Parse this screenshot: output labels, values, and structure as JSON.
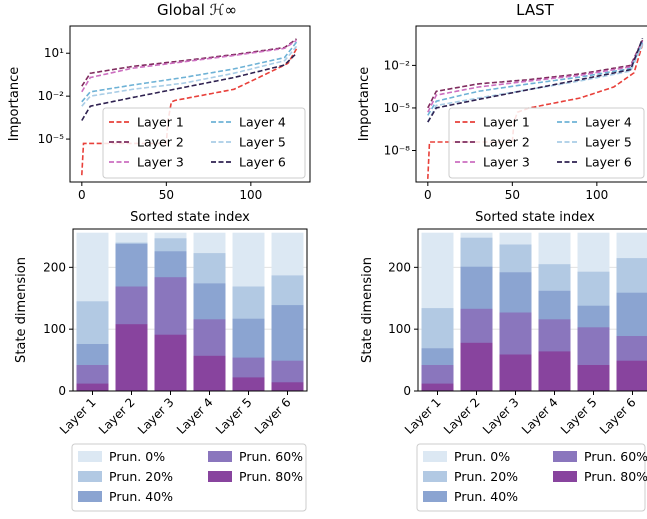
{
  "chart_data": [
    {
      "type": "line",
      "title": "Global ℋ∞",
      "xlabel": "Sorted state index",
      "ylabel": "Importance",
      "yscale": "log",
      "xticks": [
        "0",
        "50",
        "100"
      ],
      "yticks": [
        "10⁻⁵",
        "10⁻²",
        "10¹"
      ],
      "xlim": [
        -7,
        135
      ],
      "ylim": [
        1e-08,
        800
      ],
      "legend_position": "lower-right",
      "x_length": 128,
      "series": [
        {
          "name": "Layer 1",
          "color": "#e8403a",
          "dash": "dashed",
          "keypoints": [
            [
              0,
              3e-08
            ],
            [
              1,
              5e-06
            ],
            [
              50,
              5e-06
            ],
            [
              51,
              0.0002
            ],
            [
              53,
              0.004
            ],
            [
              55,
              0.005
            ],
            [
              90,
              0.03
            ],
            [
              110,
              0.4
            ],
            [
              122,
              2
            ],
            [
              127,
              20
            ]
          ]
        },
        {
          "name": "Layer 2",
          "color": "#7f2b5e",
          "dash": "dashed",
          "keypoints": [
            [
              0,
              0.05
            ],
            [
              5,
              0.4
            ],
            [
              30,
              1.2
            ],
            [
              60,
              3
            ],
            [
              90,
              8
            ],
            [
              120,
              25
            ],
            [
              127,
              100
            ]
          ]
        },
        {
          "name": "Layer 3",
          "color": "#cc6ec0",
          "dash": "dashed",
          "keypoints": [
            [
              0,
              0.02
            ],
            [
              5,
              0.2
            ],
            [
              30,
              0.9
            ],
            [
              60,
              2.5
            ],
            [
              90,
              7
            ],
            [
              120,
              22
            ],
            [
              127,
              80
            ]
          ]
        },
        {
          "name": "Layer 4",
          "color": "#6eb2d6",
          "dash": "dashed",
          "keypoints": [
            [
              0,
              0.004
            ],
            [
              5,
              0.02
            ],
            [
              30,
              0.06
            ],
            [
              60,
              0.2
            ],
            [
              90,
              0.8
            ],
            [
              120,
              5
            ],
            [
              127,
              60
            ]
          ]
        },
        {
          "name": "Layer 5",
          "color": "#a9cde6",
          "dash": "dashed",
          "keypoints": [
            [
              0,
              0.002
            ],
            [
              5,
              0.01
            ],
            [
              30,
              0.03
            ],
            [
              60,
              0.08
            ],
            [
              90,
              0.4
            ],
            [
              120,
              3
            ],
            [
              127,
              30
            ]
          ]
        },
        {
          "name": "Layer 6",
          "color": "#2e2150",
          "dash": "dashed",
          "keypoints": [
            [
              0,
              0.0002
            ],
            [
              5,
              0.002
            ],
            [
              30,
              0.008
            ],
            [
              60,
              0.04
            ],
            [
              90,
              0.2
            ],
            [
              120,
              1.5
            ],
            [
              127,
              10
            ]
          ]
        }
      ]
    },
    {
      "type": "line",
      "title": "LAST",
      "xlabel": "Sorted state index",
      "ylabel": "Importance",
      "yscale": "log",
      "xticks": [
        "0",
        "50",
        "100"
      ],
      "yticks": [
        "10⁻⁸",
        "10⁻⁵",
        "10⁻²"
      ],
      "xlim": [
        -7,
        135
      ],
      "ylim": [
        6e-11,
        6
      ],
      "legend_position": "lower-right",
      "x_length": 128,
      "series": [
        {
          "name": "Layer 1",
          "color": "#e8403a",
          "dash": "dashed",
          "keypoints": [
            [
              0,
              1e-10
            ],
            [
              1,
              4e-08
            ],
            [
              50,
              4e-08
            ],
            [
              51,
              1e-06
            ],
            [
              53,
              5e-06
            ],
            [
              60,
              1e-05
            ],
            [
              90,
              5e-05
            ],
            [
              110,
              0.0003
            ],
            [
              122,
              0.003
            ],
            [
              127,
              0.3
            ]
          ]
        },
        {
          "name": "Layer 2",
          "color": "#7f2b5e",
          "dash": "dashed",
          "keypoints": [
            [
              0,
              1e-05
            ],
            [
              5,
              0.00015
            ],
            [
              30,
              0.0005
            ],
            [
              60,
              0.001
            ],
            [
              90,
              0.0025
            ],
            [
              120,
              0.01
            ],
            [
              127,
              0.6
            ]
          ]
        },
        {
          "name": "Layer 3",
          "color": "#cc6ec0",
          "dash": "dashed",
          "keypoints": [
            [
              0,
              5e-06
            ],
            [
              5,
              8e-05
            ],
            [
              30,
              0.0003
            ],
            [
              60,
              0.0008
            ],
            [
              90,
              0.002
            ],
            [
              120,
              0.008
            ],
            [
              127,
              0.5
            ]
          ]
        },
        {
          "name": "Layer 4",
          "color": "#6eb2d6",
          "dash": "dashed",
          "keypoints": [
            [
              0,
              3e-06
            ],
            [
              5,
              3e-05
            ],
            [
              30,
              0.00015
            ],
            [
              60,
              0.0005
            ],
            [
              90,
              0.0015
            ],
            [
              120,
              0.006
            ],
            [
              127,
              0.4
            ]
          ]
        },
        {
          "name": "Layer 5",
          "color": "#a9cde6",
          "dash": "dashed",
          "keypoints": [
            [
              0,
              1e-06
            ],
            [
              5,
              1.5e-05
            ],
            [
              30,
              5e-05
            ],
            [
              60,
              0.0002
            ],
            [
              90,
              0.0008
            ],
            [
              120,
              0.004
            ],
            [
              127,
              0.3
            ]
          ]
        },
        {
          "name": "Layer 6",
          "color": "#2e2150",
          "dash": "dashed",
          "keypoints": [
            [
              0,
              1e-06
            ],
            [
              5,
              1e-05
            ],
            [
              30,
              4e-05
            ],
            [
              60,
              0.0002
            ],
            [
              90,
              0.001
            ],
            [
              120,
              0.005
            ],
            [
              127,
              0.8
            ]
          ]
        }
      ]
    },
    {
      "type": "bar",
      "subtype": "overlapping",
      "xlabel": "",
      "ylabel": "State dimension",
      "categories": [
        "Layer 1",
        "Layer 2",
        "Layer 3",
        "Layer 4",
        "Layer 5",
        "Layer 6"
      ],
      "yticks": [
        0,
        100,
        200
      ],
      "ylim": [
        0,
        262
      ],
      "legend_position": "below",
      "series": [
        {
          "name": "Prun. 0%",
          "color": "#dce8f3",
          "values": [
            256,
            256,
            256,
            256,
            256,
            256
          ]
        },
        {
          "name": "Prun. 20%",
          "color": "#b2c9e3",
          "values": [
            145,
            240,
            247,
            223,
            169,
            187
          ]
        },
        {
          "name": "Prun. 40%",
          "color": "#8ba4d1",
          "values": [
            76,
            238,
            226,
            174,
            117,
            139
          ]
        },
        {
          "name": "Prun. 60%",
          "color": "#8a76bd",
          "values": [
            42,
            169,
            184,
            116,
            54,
            49
          ]
        },
        {
          "name": "Prun. 80%",
          "color": "#88449e",
          "values": [
            12,
            108,
            91,
            57,
            22,
            14
          ]
        }
      ]
    },
    {
      "type": "bar",
      "subtype": "overlapping",
      "xlabel": "",
      "ylabel": "State dimension",
      "categories": [
        "Layer 1",
        "Layer 2",
        "Layer 3",
        "Layer 4",
        "Layer 5",
        "Layer 6"
      ],
      "yticks": [
        0,
        100,
        200
      ],
      "ylim": [
        0,
        262
      ],
      "legend_position": "below",
      "series": [
        {
          "name": "Prun. 0%",
          "color": "#dce8f3",
          "values": [
            256,
            256,
            256,
            256,
            256,
            256
          ]
        },
        {
          "name": "Prun. 20%",
          "color": "#b2c9e3",
          "values": [
            134,
            248,
            237,
            205,
            193,
            215
          ]
        },
        {
          "name": "Prun. 40%",
          "color": "#8ba4d1",
          "values": [
            69,
            201,
            192,
            162,
            138,
            159
          ]
        },
        {
          "name": "Prun. 60%",
          "color": "#8a76bd",
          "values": [
            42,
            133,
            127,
            116,
            103,
            89
          ]
        },
        {
          "name": "Prun. 80%",
          "color": "#88449e",
          "values": [
            12,
            78,
            59,
            64,
            42,
            49
          ]
        }
      ]
    }
  ]
}
